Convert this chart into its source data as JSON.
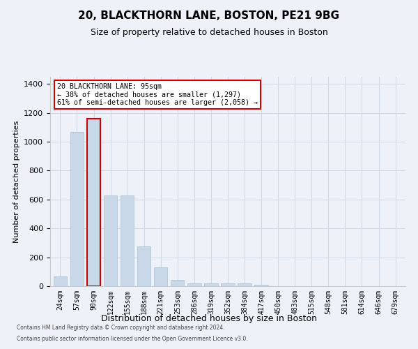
{
  "title1": "20, BLACKTHORN LANE, BOSTON, PE21 9BG",
  "title2": "Size of property relative to detached houses in Boston",
  "xlabel": "Distribution of detached houses by size in Boston",
  "ylabel": "Number of detached properties",
  "annotation_line1": "20 BLACKTHORN LANE: 95sqm",
  "annotation_line2": "← 38% of detached houses are smaller (1,297)",
  "annotation_line3": "61% of semi-detached houses are larger (2,058) →",
  "footer1": "Contains HM Land Registry data © Crown copyright and database right 2024.",
  "footer2": "Contains public sector information licensed under the Open Government Licence v3.0.",
  "bin_labels": [
    "24sqm",
    "57sqm",
    "90sqm",
    "122sqm",
    "155sqm",
    "188sqm",
    "221sqm",
    "253sqm",
    "286sqm",
    "319sqm",
    "352sqm",
    "384sqm",
    "417sqm",
    "450sqm",
    "483sqm",
    "515sqm",
    "548sqm",
    "581sqm",
    "614sqm",
    "646sqm",
    "679sqm"
  ],
  "bar_values": [
    70,
    1070,
    1160,
    630,
    630,
    275,
    130,
    45,
    20,
    20,
    20,
    20,
    10,
    0,
    0,
    0,
    0,
    0,
    0,
    0,
    0
  ],
  "bar_color": "#c8d8e8",
  "bar_edge_color": "#a8bfd0",
  "highlight_bar_index": 2,
  "highlight_edge_color": "#cc0000",
  "annotation_box_edge_color": "#cc0000",
  "annotation_box_face_color": "#ffffff",
  "grid_color": "#d0d8e8",
  "bg_color": "#eef2f8",
  "ylim": [
    0,
    1450
  ],
  "yticks": [
    0,
    200,
    400,
    600,
    800,
    1000,
    1200,
    1400
  ],
  "title1_fontsize": 11,
  "title2_fontsize": 9,
  "xlabel_fontsize": 9,
  "ylabel_fontsize": 8,
  "tick_fontsize": 8,
  "xtick_fontsize": 7
}
